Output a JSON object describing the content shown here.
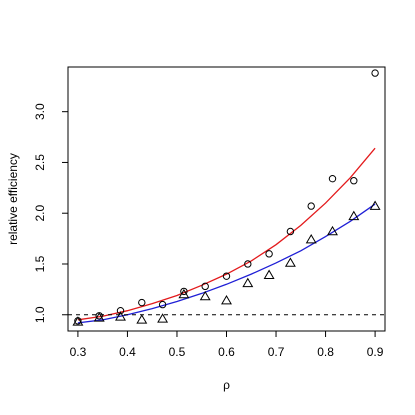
{
  "chart_data": {
    "type": "scatter",
    "xlabel": "ρ",
    "ylabel": "relative efficiency",
    "xlim": [
      0.28,
      0.92
    ],
    "ylim": [
      0.84,
      3.44
    ],
    "x_ticks": [
      0.3,
      0.4,
      0.5,
      0.6,
      0.7,
      0.8,
      0.9
    ],
    "x_tick_labels": [
      "0.3",
      "0.4",
      "0.5",
      "0.6",
      "0.7",
      "0.8",
      "0.9"
    ],
    "y_ticks": [
      1.0,
      1.5,
      2.0,
      2.5,
      3.0
    ],
    "y_tick_labels": [
      "1.0",
      "1.5",
      "2.0",
      "2.5",
      "3.0"
    ],
    "grid": false,
    "reference_line": {
      "y": 1.0,
      "style": "dashed",
      "color": "#000000"
    },
    "series": [
      {
        "marker": "circle",
        "color": "#000000",
        "x": [
          0.3,
          0.343,
          0.386,
          0.429,
          0.471,
          0.514,
          0.557,
          0.6,
          0.643,
          0.686,
          0.729,
          0.771,
          0.814,
          0.857,
          0.9
        ],
        "y": [
          0.94,
          0.99,
          1.04,
          1.12,
          1.1,
          1.23,
          1.28,
          1.38,
          1.5,
          1.6,
          1.82,
          2.07,
          2.34,
          2.32,
          3.38
        ]
      },
      {
        "marker": "triangle",
        "color": "#000000",
        "x": [
          0.3,
          0.343,
          0.386,
          0.429,
          0.471,
          0.514,
          0.557,
          0.6,
          0.643,
          0.686,
          0.729,
          0.771,
          0.814,
          0.857,
          0.9
        ],
        "y": [
          0.93,
          0.97,
          0.98,
          0.95,
          0.96,
          1.2,
          1.18,
          1.14,
          1.31,
          1.39,
          1.51,
          1.74,
          1.82,
          1.97,
          2.07
        ]
      },
      {
        "line": "smooth",
        "color": "#e31a1c",
        "x": [
          0.3,
          0.35,
          0.4,
          0.45,
          0.5,
          0.55,
          0.6,
          0.65,
          0.7,
          0.75,
          0.8,
          0.85,
          0.9
        ],
        "y": [
          0.95,
          0.985,
          1.04,
          1.11,
          1.19,
          1.29,
          1.4,
          1.53,
          1.69,
          1.88,
          2.1,
          2.35,
          2.64
        ]
      },
      {
        "line": "smooth",
        "color": "#1f1fd6",
        "x": [
          0.3,
          0.35,
          0.4,
          0.45,
          0.5,
          0.55,
          0.6,
          0.65,
          0.7,
          0.75,
          0.8,
          0.85,
          0.9
        ],
        "y": [
          0.92,
          0.95,
          1.0,
          1.06,
          1.13,
          1.21,
          1.3,
          1.4,
          1.51,
          1.63,
          1.77,
          1.92,
          2.09
        ]
      }
    ]
  }
}
